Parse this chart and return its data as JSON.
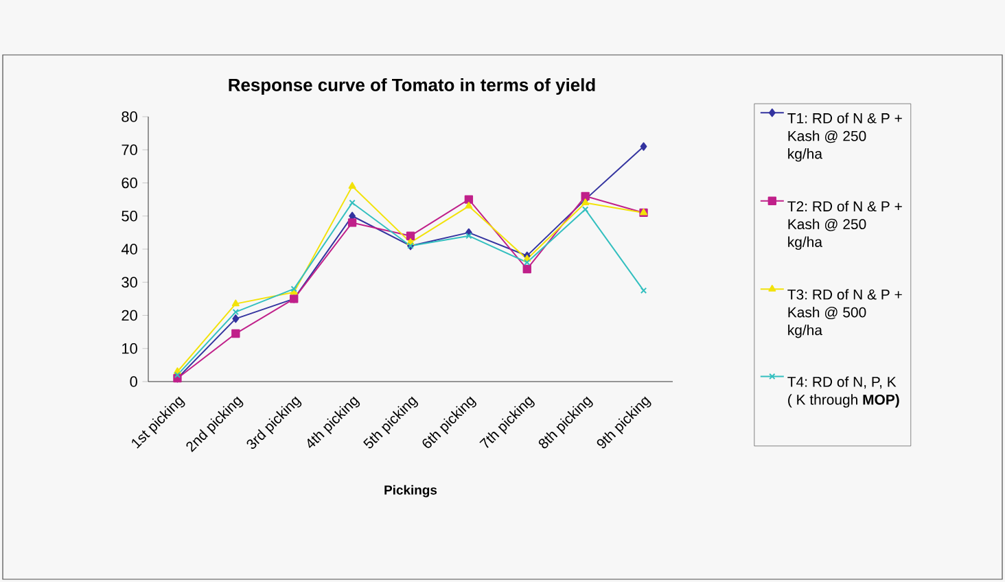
{
  "chart_data": {
    "type": "line",
    "title": "Response curve of Tomato in terms of yield",
    "xlabel": "Pickings",
    "categories": [
      "1st picking",
      "2nd picking",
      "3rd picking",
      "4th picking",
      "5th picking",
      "6th picking",
      "7th picking",
      "8th picking",
      "9th picking"
    ],
    "series": [
      {
        "name": "T1: RD of N & P + Kash @ 250 kg/ha",
        "color": "#33339f",
        "marker": "diamond",
        "values": [
          1,
          19,
          25,
          50,
          41,
          45,
          38,
          55,
          71
        ]
      },
      {
        "name": "T2: RD of N & P + Kash @ 250 kg/ha",
        "color": "#c0208a",
        "marker": "square",
        "values": [
          1,
          14.5,
          25,
          48,
          44,
          55,
          34,
          56,
          51
        ]
      },
      {
        "name": "T3: RD of N & P + Kash @ 500 kg/ha",
        "color": "#f2e20a",
        "marker": "triangle",
        "values": [
          3,
          23.5,
          27,
          59,
          42,
          53,
          37,
          54,
          51
        ]
      },
      {
        "name": "T4: RD of N, P, K ( K through **MOP)**",
        "color": "#33bfbf",
        "marker": "cross",
        "values": [
          2,
          21,
          28,
          54,
          41,
          44,
          36,
          52,
          27.5
        ]
      }
    ],
    "ylim": [
      0,
      80
    ],
    "yticks": [
      0,
      10,
      20,
      30,
      40,
      50,
      60,
      70,
      80
    ],
    "grid": false,
    "legend": "right",
    "line_style": "solid"
  }
}
